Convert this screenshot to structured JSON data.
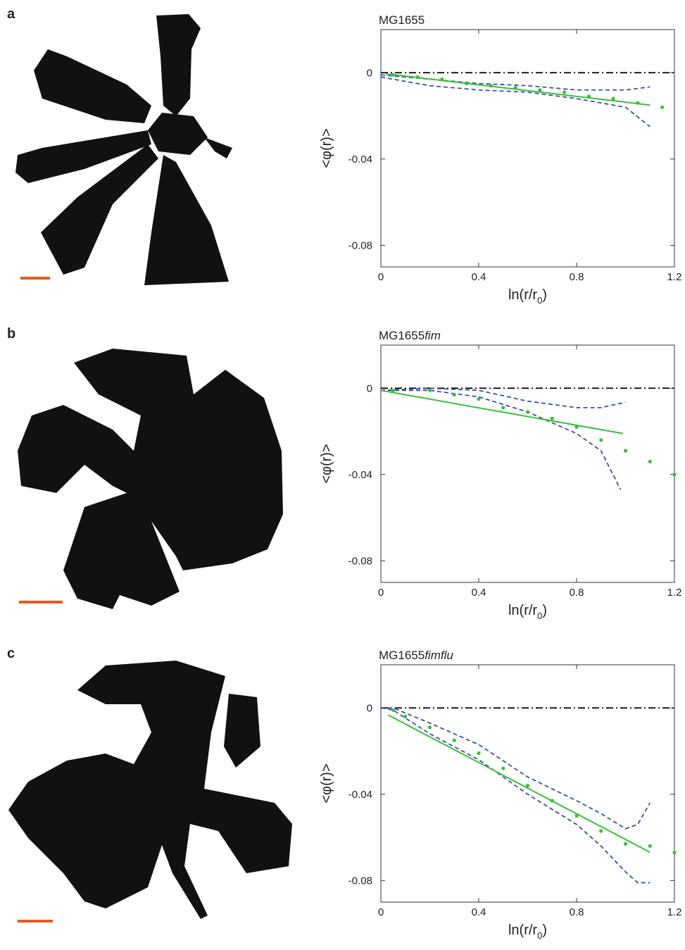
{
  "chart_data": [
    {
      "type": "line",
      "panel": "a",
      "title": [
        "MG1655"
      ],
      "xlabel": [
        "ln(r/r",
        "0",
        ")"
      ],
      "ylabel": "<φ(r)>",
      "xlim": [
        0,
        1.2
      ],
      "xticks": [
        0,
        0.4,
        0.8,
        1.2
      ],
      "ylim": [
        -0.09,
        0.02
      ],
      "yticks": [
        0,
        -0.04,
        -0.08
      ],
      "series": [
        {
          "color": "#000000",
          "style": "dashdot",
          "x": [
            0,
            1.2
          ],
          "values": [
            0,
            0
          ]
        },
        {
          "color": "#3a4fb0",
          "style": "dashed",
          "x": [
            0,
            0.2,
            0.4,
            0.6,
            0.8,
            1.0,
            1.1
          ],
          "values": [
            -0.001,
            -0.003,
            -0.005,
            -0.006,
            -0.008,
            -0.008,
            -0.0066
          ]
        },
        {
          "color": "#3a4fb0",
          "style": "dashed",
          "x": [
            0,
            0.2,
            0.4,
            0.6,
            0.8,
            1.0,
            1.1
          ],
          "values": [
            -0.002,
            -0.006,
            -0.008,
            -0.009,
            -0.012,
            -0.016,
            -0.025
          ]
        },
        {
          "color": "#3bbf3b",
          "style": "solid",
          "x": [
            0.02,
            1.1
          ],
          "values": [
            -0.0005,
            -0.015
          ]
        },
        {
          "color": "#3bbf3b",
          "style": "dots",
          "x": [
            0.05,
            0.15,
            0.25,
            0.35,
            0.45,
            0.55,
            0.65,
            0.75,
            0.85,
            0.95,
            1.05,
            1.15
          ],
          "values": [
            -0.001,
            -0.002,
            -0.003,
            -0.005,
            -0.006,
            -0.007,
            -0.008,
            -0.009,
            -0.011,
            -0.012,
            -0.014,
            -0.016
          ]
        }
      ]
    },
    {
      "type": "line",
      "panel": "b",
      "title": [
        "MG1655",
        "fim"
      ],
      "xlabel": [
        "ln(r/r",
        "0",
        ")"
      ],
      "ylabel": "<φ(r)>",
      "xlim": [
        0,
        1.2
      ],
      "xticks": [
        0,
        0.4,
        0.8,
        1.2
      ],
      "ylim": [
        -0.09,
        0.02
      ],
      "yticks": [
        0,
        -0.04,
        -0.08
      ],
      "series": [
        {
          "color": "#000000",
          "style": "dashdot",
          "x": [
            0,
            1.2
          ],
          "values": [
            0,
            0
          ]
        },
        {
          "color": "#3a4fb0",
          "style": "dashed",
          "x": [
            0,
            0.2,
            0.4,
            0.6,
            0.8,
            0.9,
            1.0
          ],
          "values": [
            -0.001,
            0,
            -0.001,
            -0.006,
            -0.009,
            -0.009,
            -0.0065
          ]
        },
        {
          "color": "#3a4fb0",
          "style": "dashed",
          "x": [
            0,
            0.2,
            0.4,
            0.6,
            0.8,
            0.9,
            0.98
          ],
          "values": [
            -0.001,
            -0.001,
            -0.004,
            -0.011,
            -0.021,
            -0.029,
            -0.047
          ]
        },
        {
          "color": "#3bbf3b",
          "style": "solid",
          "x": [
            0,
            0.99
          ],
          "values": [
            -0.001,
            -0.021
          ]
        },
        {
          "color": "#3bbf3b",
          "style": "dots",
          "x": [
            0.05,
            0.2,
            0.3,
            0.4,
            0.5,
            0.6,
            0.7,
            0.8,
            0.9,
            1.0,
            1.1,
            1.2
          ],
          "values": [
            -0.001,
            -0.001,
            -0.003,
            -0.005,
            -0.009,
            -0.011,
            -0.014,
            -0.018,
            -0.024,
            -0.029,
            -0.034,
            -0.04
          ]
        }
      ]
    },
    {
      "type": "line",
      "panel": "c",
      "title": [
        "MG1655",
        "fimflu"
      ],
      "xlabel": [
        "ln(r/r",
        "0",
        ")"
      ],
      "ylabel": "<φ(r)>",
      "xlim": [
        0,
        1.2
      ],
      "xticks": [
        0,
        0.4,
        0.8,
        1.2
      ],
      "ylim": [
        -0.09,
        0.02
      ],
      "yticks": [
        0,
        -0.04,
        -0.08
      ],
      "series": [
        {
          "color": "#000000",
          "style": "dashdot",
          "x": [
            0,
            1.2
          ],
          "values": [
            0,
            0
          ]
        },
        {
          "color": "#3a4fb0",
          "style": "dashed",
          "x": [
            0,
            0.05,
            0.2,
            0.4,
            0.6,
            0.8,
            0.9,
            1.0,
            1.05,
            1.1
          ],
          "values": [
            0,
            0,
            -0.007,
            -0.017,
            -0.032,
            -0.043,
            -0.049,
            -0.056,
            -0.054,
            -0.044
          ]
        },
        {
          "color": "#3a4fb0",
          "style": "dashed",
          "x": [
            0,
            0.05,
            0.2,
            0.4,
            0.6,
            0.8,
            0.9,
            1.0,
            1.05,
            1.1
          ],
          "values": [
            0,
            -0.001,
            -0.012,
            -0.024,
            -0.04,
            -0.054,
            -0.064,
            -0.076,
            -0.081,
            -0.081
          ]
        },
        {
          "color": "#3bbf3b",
          "style": "solid",
          "x": [
            0.03,
            1.1
          ],
          "values": [
            -0.0033,
            -0.0669
          ]
        },
        {
          "color": "#3bbf3b",
          "style": "dots",
          "x": [
            0.05,
            0.1,
            0.2,
            0.3,
            0.4,
            0.5,
            0.6,
            0.7,
            0.8,
            0.9,
            1.0,
            1.1,
            1.2
          ],
          "values": [
            -0.001,
            -0.004,
            -0.009,
            -0.015,
            -0.021,
            -0.028,
            -0.036,
            -0.043,
            -0.05,
            -0.057,
            -0.063,
            -0.064,
            -0.067
          ]
        }
      ]
    }
  ]
}
